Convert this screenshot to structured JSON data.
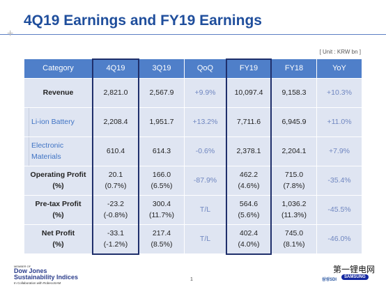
{
  "header": {
    "title": "4Q19 Earnings and FY19 Earnings",
    "unit": "[ Unit : KRW bn ]"
  },
  "table": {
    "columns": [
      "Category",
      "4Q19",
      "3Q19",
      "QoQ",
      "FY19",
      "FY18",
      "YoY"
    ],
    "rows": [
      {
        "kind": "main",
        "cells": [
          [
            "Revenue"
          ],
          [
            "2,821.0"
          ],
          [
            "2,567.9"
          ],
          [
            "+9.9%"
          ],
          [
            "10,097.4"
          ],
          [
            "9,158.3"
          ],
          [
            "+10.3%"
          ]
        ]
      },
      {
        "kind": "sub",
        "cells": [
          [
            "Li-ion Battery"
          ],
          [
            "2,208.4"
          ],
          [
            "1,951.7"
          ],
          [
            "+13.2%"
          ],
          [
            "7,711.6"
          ],
          [
            "6,945.9"
          ],
          [
            "+11.0%"
          ]
        ]
      },
      {
        "kind": "sub",
        "cells": [
          [
            "Electronic Materials"
          ],
          [
            "610.4"
          ],
          [
            "614.3"
          ],
          [
            "-0.6%"
          ],
          [
            "2,378.1"
          ],
          [
            "2,204.1"
          ],
          [
            "+7.9%"
          ]
        ]
      },
      {
        "kind": "main",
        "cells": [
          [
            "Operating Profit",
            "(%)"
          ],
          [
            "20.1",
            "(0.7%)"
          ],
          [
            "166.0",
            "(6.5%)"
          ],
          [
            "-87.9%"
          ],
          [
            "462.2",
            "(4.6%)"
          ],
          [
            "715.0",
            "(7.8%)"
          ],
          [
            "-35.4%"
          ]
        ]
      },
      {
        "kind": "main",
        "cells": [
          [
            "Pre-tax Profit",
            "(%)"
          ],
          [
            "-23.2",
            "(-0.8%)"
          ],
          [
            "300.4",
            "(11.7%)"
          ],
          [
            "T/L"
          ],
          [
            "564.6",
            "(5.6%)"
          ],
          [
            "1,036.2",
            "(11.3%)"
          ],
          [
            "-45.5%"
          ]
        ]
      },
      {
        "kind": "main",
        "cells": [
          [
            "Net Profit",
            "(%)"
          ],
          [
            "-33.1",
            "(-1.2%)"
          ],
          [
            "217.4",
            "(8.5%)"
          ],
          [
            "T/L"
          ],
          [
            "402.4",
            "(4.0%)"
          ],
          [
            "745.0",
            "(8.1%)"
          ],
          [
            "-46.0%"
          ]
        ]
      }
    ]
  },
  "footer": {
    "member": "MEMBER OF",
    "dow_jones": "Dow Jones",
    "indices": "Sustainability Indices",
    "collab": "In Collaboration with RobecoSAM",
    "page": "1",
    "watermark": "第一锂电网",
    "brand_kr": "삼성SDI",
    "brand": "SAMSUNG"
  }
}
